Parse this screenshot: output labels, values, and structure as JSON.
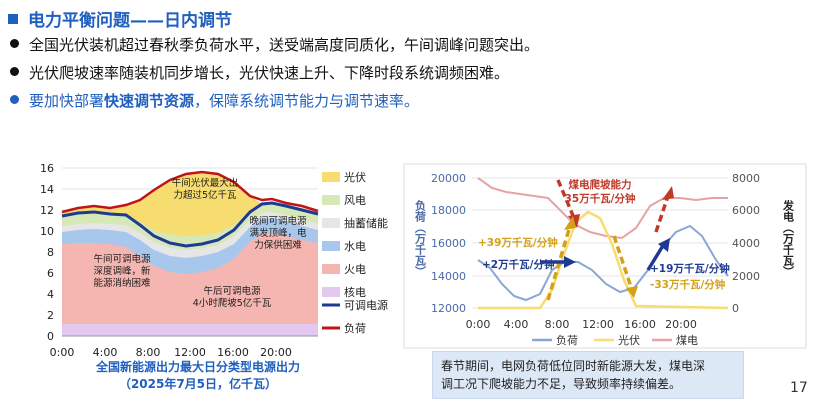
{
  "title": "电力平衡问题——日内调节",
  "bullets": [
    "全国光伏装机超过春秋季负荷水平，送受端高度同质化，午间调峰问题突出。",
    "光伏爬坡速率随装机同步增长，光伏快速上升、下降时段系统调频困难。"
  ],
  "bullet3": {
    "pre": "要加快部署",
    "highlight": "快速调节资源",
    "post": "，保障系统调节能力与调节速率。"
  },
  "left_chart": {
    "y_ticks": [
      "0",
      "2",
      "4",
      "6",
      "8",
      "10",
      "12",
      "14",
      "16"
    ],
    "x_ticks": [
      "0:00",
      "4:00",
      "8:00",
      "12:00",
      "16:00",
      "20:00"
    ],
    "legend": [
      {
        "label": "光伏",
        "color": "#f7dc6f"
      },
      {
        "label": "风电",
        "color": "#d5e8b5"
      },
      {
        "label": "抽蓄储能",
        "color": "#e6e6e6"
      },
      {
        "label": "水电",
        "color": "#a7c8ec"
      },
      {
        "label": "火电",
        "color": "#f5b5b0"
      },
      {
        "label": "核电",
        "color": "#e3c8f0"
      },
      {
        "label": "可调电源",
        "color": "#1f3a93"
      },
      {
        "label": "负荷",
        "color": "#c0141c"
      }
    ],
    "annotations": {
      "a1": [
        "午间光伏最大出",
        "力超过5亿千瓦"
      ],
      "a2": [
        "午间可调电源",
        "深度调峰，新",
        "能源消纳困难"
      ],
      "a3": [
        "晚间可调电源",
        "满发顶峰，电",
        "力保供困难"
      ],
      "a4": [
        "午后可调电源",
        "4小时爬坡5亿千瓦"
      ]
    },
    "caption": [
      "全国新能源出力最大日分类型电源出力",
      "（2025年7月5日，亿千瓦）"
    ]
  },
  "right_chart": {
    "y_left_ticks": [
      "12000",
      "14000",
      "16000",
      "18000",
      "20000"
    ],
    "y_right_ticks": [
      "0",
      "2000",
      "4000",
      "6000",
      "8000"
    ],
    "x_ticks": [
      "0:00",
      "4:00",
      "8:00",
      "12:00",
      "16:00",
      "20:00"
    ],
    "y_left_label": "负荷（万千瓦）",
    "y_right_label": "发电（万千瓦）",
    "legend": [
      {
        "label": "负荷",
        "color": "#8aa6d6"
      },
      {
        "label": "光伏",
        "color": "#f7dc6f"
      },
      {
        "label": "煤电",
        "color": "#e7a3a3"
      }
    ],
    "annotations": {
      "coal": [
        "煤电爬坡能力",
        "35万千瓦/分钟"
      ],
      "pv_up": "+39万千瓦/分钟",
      "load_up1": "+2万千瓦/分钟",
      "load_up2": "+19万千瓦/分钟",
      "pv_down": "-33万千瓦/分钟"
    },
    "note": [
      "春节期间，电网负荷低位同时新能源大发，煤电深",
      "调工况下爬坡能力不足，导致频率持续偏差。"
    ]
  },
  "page_number": "17"
}
